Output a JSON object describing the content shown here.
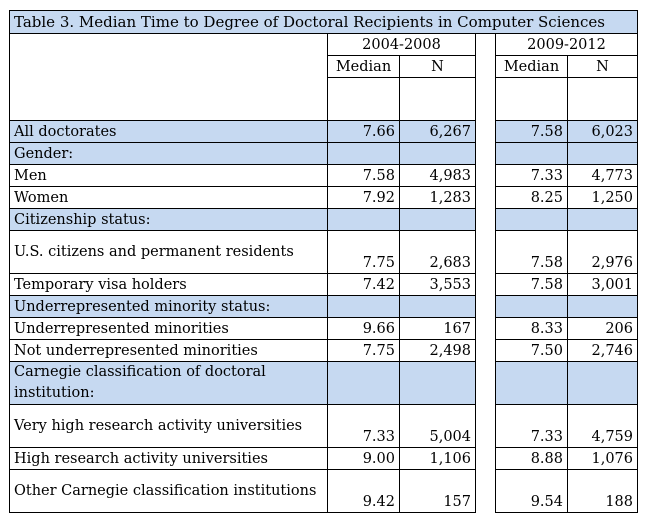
{
  "title": "Table 3.  Median Time to Degree of Doctoral Recipients in Computer Sciences",
  "periods": [
    "2004-2008",
    "2009-2012"
  ],
  "col_median": "Median",
  "col_n": "N",
  "rows": [
    {
      "label": "All doctorates",
      "kind": "highlight",
      "m1": "7.66",
      "n1": "6,267",
      "m2": "7.58",
      "n2": "6,023"
    },
    {
      "label": "Gender:",
      "kind": "section"
    },
    {
      "label": "Men",
      "kind": "data",
      "m1": "7.58",
      "n1": "4,983",
      "m2": "7.33",
      "n2": "4,773"
    },
    {
      "label": "Women",
      "kind": "data",
      "m1": "7.92",
      "n1": "1,283",
      "m2": "8.25",
      "n2": "1,250"
    },
    {
      "label": "Citizenship status:",
      "kind": "section"
    },
    {
      "label": "U.S. citizens and permanent residents",
      "kind": "data",
      "tall": true,
      "m1": "7.75",
      "n1": "2,683",
      "m2": "7.58",
      "n2": "2,976"
    },
    {
      "label": "Temporary visa holders",
      "kind": "data",
      "m1": "7.42",
      "n1": "3,553",
      "m2": "7.58",
      "n2": "3,001"
    },
    {
      "label": "Underrepresented minority status:",
      "kind": "section"
    },
    {
      "label": "Underrepresented minorities",
      "kind": "data",
      "m1": "9.66",
      "n1": "167",
      "m2": "8.33",
      "n2": "206"
    },
    {
      "label": "Not underrepresented minorities",
      "kind": "data",
      "m1": "7.75",
      "n1": "2,498",
      "m2": "7.50",
      "n2": "2,746"
    },
    {
      "label": "Carnegie classification of doctoral institution:",
      "kind": "section",
      "tall": true
    },
    {
      "label": "Very high research activity universities",
      "kind": "data",
      "tall": true,
      "m1": "7.33",
      "n1": "5,004",
      "m2": "7.33",
      "n2": "4,759"
    },
    {
      "label": "High research activity universities",
      "kind": "data",
      "m1": "9.00",
      "n1": "1,106",
      "m2": "8.88",
      "n2": "1,076"
    },
    {
      "label": "Other Carnegie classification institutions",
      "kind": "data",
      "tall": true,
      "m1": "9.42",
      "n1": "157",
      "m2": "9.54",
      "n2": "188"
    }
  ]
}
